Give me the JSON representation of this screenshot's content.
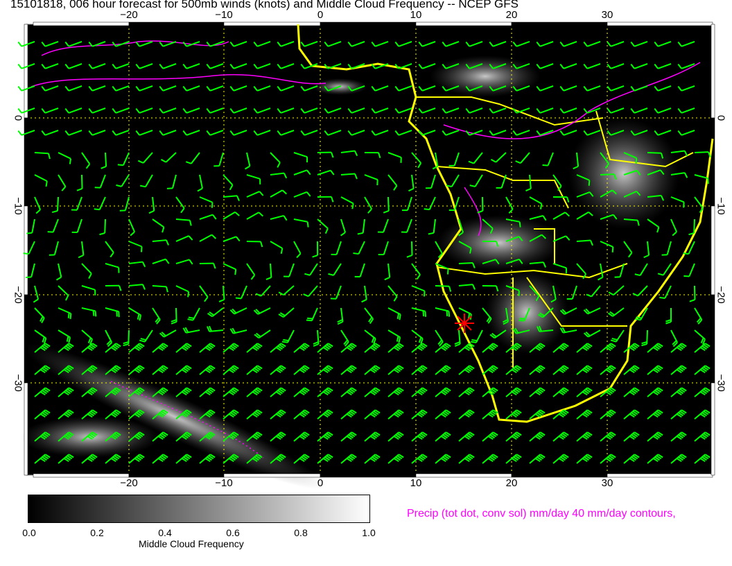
{
  "title": "15101818, 006 hour forecast for 500mb winds (knots) and Middle Cloud Frequency -- NCEP GFS",
  "lon_ticks": [
    "−20",
    "−10",
    "0",
    "10",
    "20",
    "30"
  ],
  "lat_ticks": [
    "0",
    "−10",
    "−20",
    "−30"
  ],
  "colorbar": {
    "label": "Middle Cloud Frequency",
    "ticks": [
      "0.0",
      "0.2",
      "0.4",
      "0.6",
      "0.8",
      "1.0"
    ],
    "range": [
      0.0,
      1.0
    ]
  },
  "precip_legend": "Precip (tot dot, conv sol) mm/day 40 mm/day contours,",
  "colors": {
    "background": "#000000",
    "wind_barbs": "#00ff00",
    "coastlines": "#ffff00",
    "precip_contours": "#ff00ff",
    "marker": "#ff0000"
  },
  "marker_icon": "red-star-icon"
}
